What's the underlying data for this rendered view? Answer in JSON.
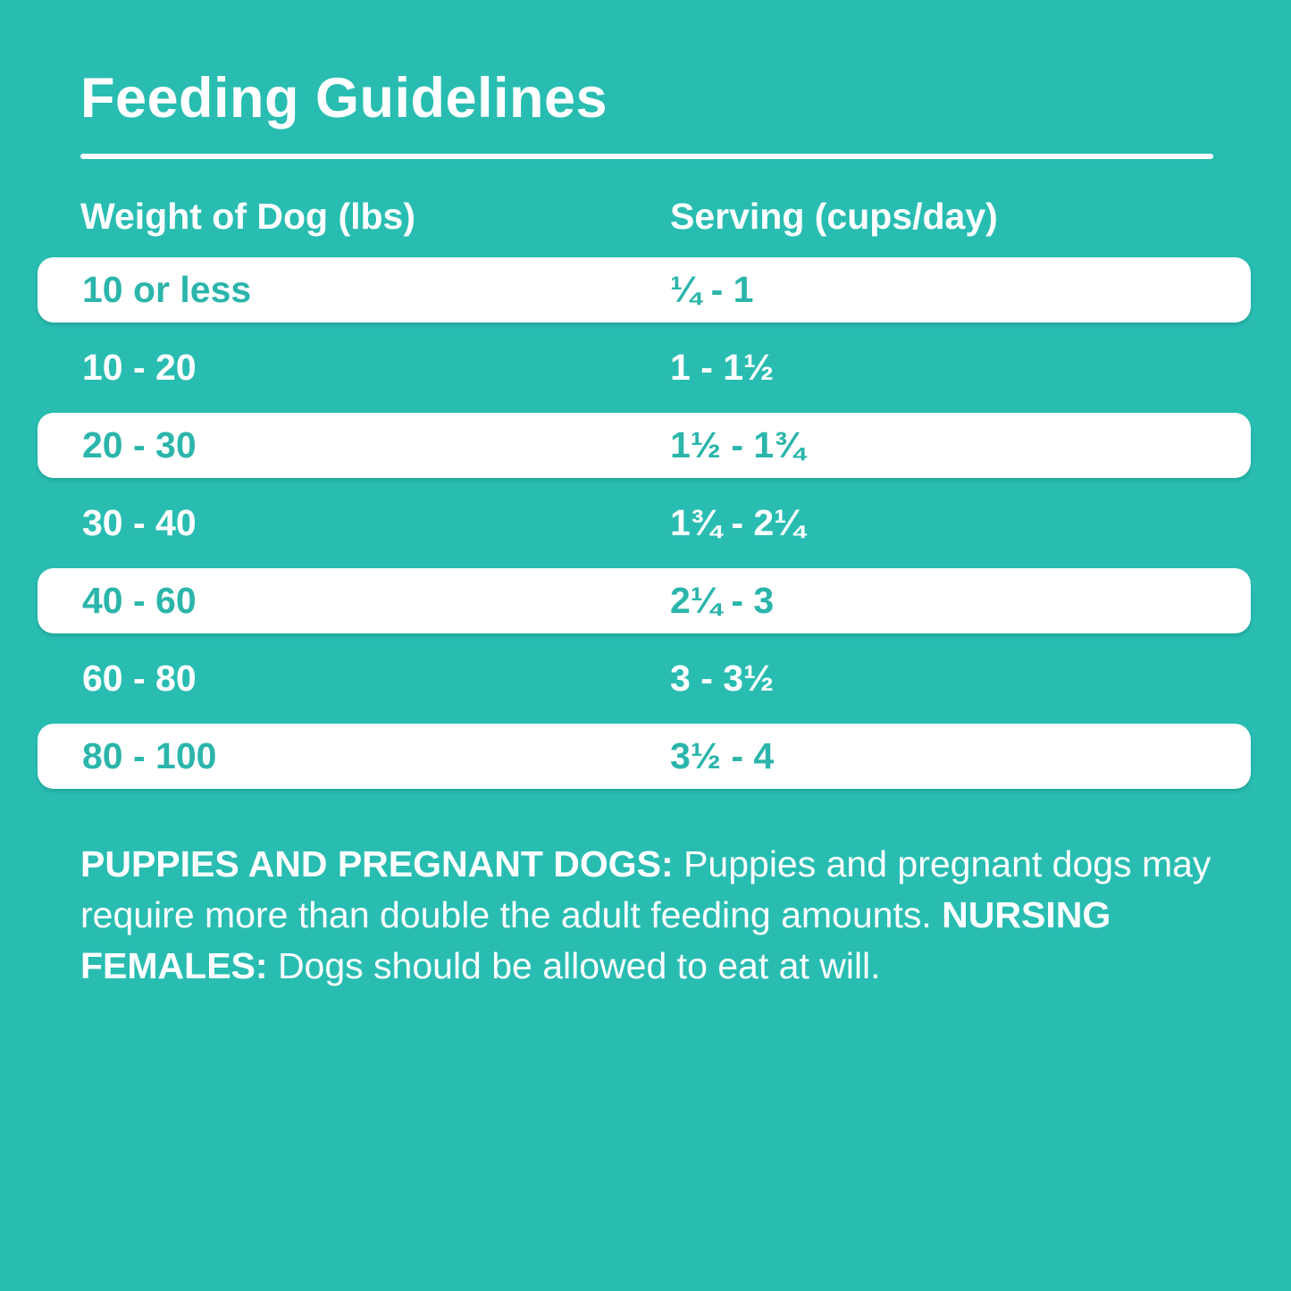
{
  "colors": {
    "background": "#29BDB2",
    "row_highlight": "#FFFFFF",
    "text_on_teal": "#FFFFFF",
    "text_on_white": "#2BB5AB"
  },
  "title": "Feeding Guidelines",
  "table": {
    "col1_header": "Weight of Dog (lbs)",
    "col2_header": "Serving (cups/day)",
    "rows": [
      {
        "weight": "10 or less",
        "serving": "¼ - 1"
      },
      {
        "weight": "10 - 20",
        "serving": "1 - 1½"
      },
      {
        "weight": "20 - 30",
        "serving": "1½ - 1¾"
      },
      {
        "weight": "30 - 40",
        "serving": "1¾ - 2¼"
      },
      {
        "weight": "40 - 60",
        "serving": "2¼ - 3"
      },
      {
        "weight": "60 - 80",
        "serving": "3 - 3½"
      },
      {
        "weight": "80 - 100",
        "serving": "3½ - 4"
      }
    ]
  },
  "chart_data": {
    "type": "table",
    "title": "Feeding Guidelines",
    "columns": [
      "Weight of Dog (lbs)",
      "Serving (cups/day)"
    ],
    "rows": [
      [
        "10 or less",
        "¼ - 1"
      ],
      [
        "10 - 20",
        "1 - 1½"
      ],
      [
        "20 - 30",
        "1½ - 1¾"
      ],
      [
        "30 - 40",
        "1¾ - 2¼"
      ],
      [
        "40 - 60",
        "2¼ - 3"
      ],
      [
        "60 - 80",
        "3 - 3½"
      ],
      [
        "80 - 100",
        "3½ - 4"
      ]
    ],
    "layout_hints": {
      "alternating_row_highlight": "white rounded rows on teal background, starting with first data row",
      "header_divider": "white horizontal rule under title"
    }
  },
  "footnote": {
    "label1": "PUPPIES AND PREGNANT DOGS:",
    "text1": " Puppies and pregnant dogs may require more than double the adult feeding amounts. ",
    "label2": "NURSING FEMALES:",
    "text2": " Dogs should be allowed to eat at will."
  }
}
